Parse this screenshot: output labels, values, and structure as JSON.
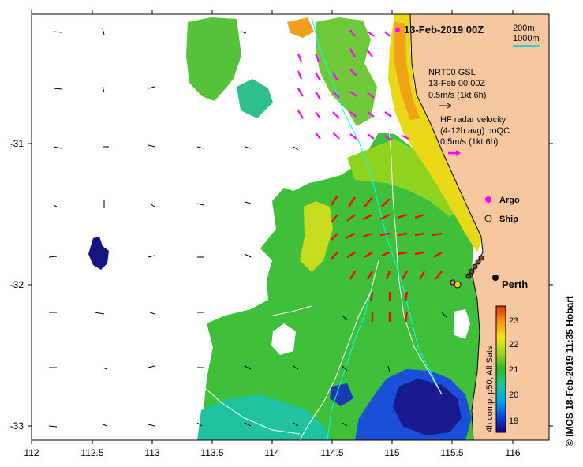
{
  "map": {
    "title": "13-Feb-2019 00Z",
    "x_ticks": [
      "112",
      "112.5",
      "113",
      "113.5",
      "114",
      "114.5",
      "115",
      "115.5",
      "116"
    ],
    "y_ticks": [
      "-31",
      "-32",
      "-33"
    ],
    "x_range": [
      112,
      116.3
    ],
    "y_range": [
      -33.1,
      -30.0
    ]
  },
  "legend": {
    "contour_200m": "200m",
    "contour_1000m": "1000m",
    "model_name": "NRT00 GSL",
    "model_time": "13-Feb 00:00Z",
    "model_scale": "0.5m/s (1kt 6h)",
    "radar_title": "HF radar velocity",
    "radar_sub": "(4-12h avg) noQC",
    "radar_scale": "0.5m/s (1kt 6h)",
    "argo_label": "Argo",
    "ship_label": "Ship"
  },
  "places": {
    "city": "Perth"
  },
  "colorbar": {
    "ticks": [
      "23",
      "22",
      "21",
      "20",
      "19"
    ],
    "caption": "4h comp, p50, All Sats"
  },
  "credit": "© IMOS 18-Feb-2019 11:35 Hobart",
  "colors": {
    "land": "#f7c8a0",
    "model_arrow": "#000000",
    "radar_arrow_offshore": "#ff00ff",
    "radar_arrow_inshore": "#ff0000",
    "contour_200m": "#00ffff",
    "contour_1000m": "#ffffff"
  }
}
